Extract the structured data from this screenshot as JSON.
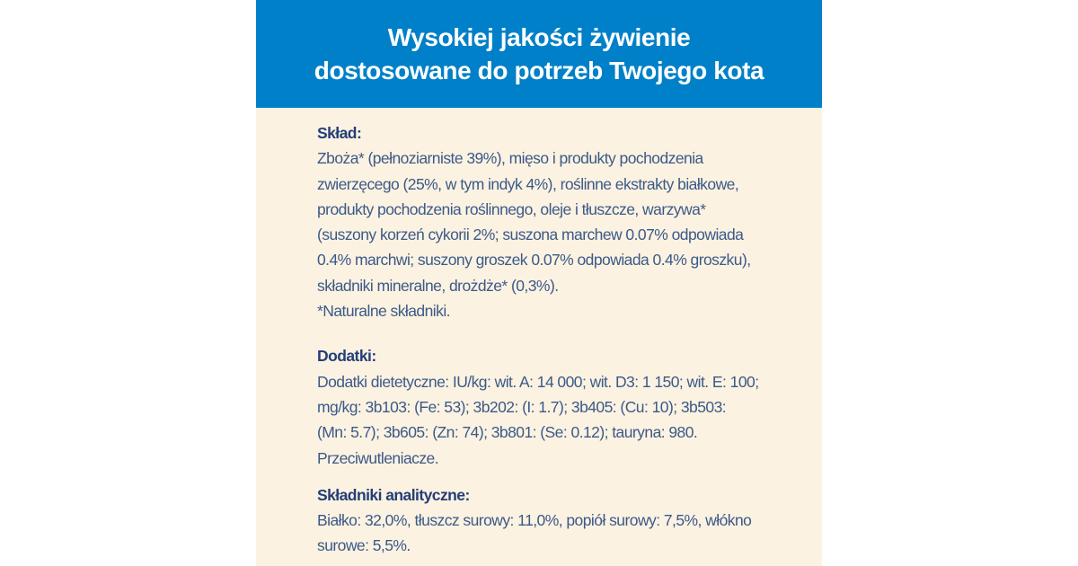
{
  "colors": {
    "header_bg": "#0080c8",
    "header_text": "#ffffff",
    "body_bg": "#fcf2e2",
    "heading_text": "#243e78",
    "body_text": "#3b5a88",
    "page_bg": "#ffffff"
  },
  "header": {
    "line1": "Wysokiej jakości żywienie",
    "line2": "dostosowane do potrzeb Twojego kota"
  },
  "sections": [
    {
      "heading": "Skład:",
      "lines": [
        "Zboża* (pełnoziarniste 39%), mięso i produkty pochodzenia",
        "zwierzęcego (25%, w tym indyk 4%), roślinne ekstrakty białkowe,",
        "produkty pochodzenia roślinnego, oleje i tłuszcze, warzywa*",
        "(suszony korzeń cykorii 2%; suszona marchew 0.07% odpowiada",
        "0.4% marchwi; suszony groszek 0.07% odpowiada 0.4% groszku),",
        "składniki mineralne, drożdże* (0,3%).",
        "*Naturalne składniki."
      ]
    },
    {
      "heading": "Dodatki:",
      "lines": [
        "Dodatki dietetyczne: IU/kg: wit. A: 14 000; wit. D3: 1 150; wit. E: 100;",
        "mg/kg: 3b103: (Fe: 53); 3b202: (I: 1.7); 3b405: (Cu: 10); 3b503:",
        "(Mn: 5.7); 3b605: (Zn: 74); 3b801: (Se: 0.12); tauryna: 980.",
        "Przeciwutleniacze."
      ]
    },
    {
      "heading": "Składniki analityczne:",
      "lines": [
        "Białko: 32,0%, tłuszcz surowy: 11,0%, popiół surowy: 7,5%, włókno",
        "surowe: 5,5%."
      ]
    }
  ]
}
